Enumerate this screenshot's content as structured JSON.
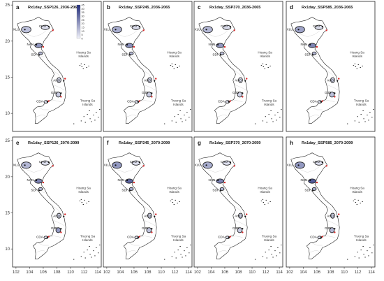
{
  "figure": {
    "x_ticks": [
      "102",
      "104",
      "106",
      "108",
      "110",
      "112",
      "114"
    ],
    "y_ticks": [
      "10",
      "15",
      "20",
      "25"
    ],
    "island_labels": {
      "hoang_sa": [
        "Hoang Sa",
        "Islands"
      ],
      "truong_sa": [
        "Truong Sa",
        "Islands"
      ]
    },
    "stations": [
      "XLU",
      "CHU",
      "NAN",
      "SDI",
      "AHO",
      "G3D",
      "CDA"
    ],
    "legend": {
      "ticks": [
        "45",
        "40",
        "35",
        "30",
        "25",
        "20",
        "15",
        "10",
        "5",
        "0"
      ],
      "color_high": "#1f2a7a",
      "color_low": "#f2f3fb"
    },
    "colors": {
      "basin_low": "#e6e8f6",
      "basin_mid": "#9aa2d6",
      "basin_high": "#3a45a6",
      "station_marker": "#d62728",
      "outline": "#222222"
    }
  },
  "panels": [
    {
      "letter": "a",
      "title": "Rx1day_SSP126_2036-2065",
      "has_legend": true,
      "intensity": [
        0.25,
        0.1,
        0.45,
        0.3,
        0.15,
        0.2,
        0.1
      ]
    },
    {
      "letter": "b",
      "title": "Rx1day_SSP245_2036-2065",
      "has_legend": false,
      "intensity": [
        0.35,
        0.1,
        0.5,
        0.3,
        0.15,
        0.2,
        0.1
      ]
    },
    {
      "letter": "c",
      "title": "Rx1day_SSP370_2036-2065",
      "has_legend": false,
      "intensity": [
        0.3,
        0.1,
        0.45,
        0.25,
        0.1,
        0.15,
        0.1
      ]
    },
    {
      "letter": "d",
      "title": "Rx1day_SSP585_2036-2065",
      "has_legend": false,
      "intensity": [
        0.4,
        0.1,
        0.55,
        0.3,
        0.15,
        0.25,
        0.1
      ]
    },
    {
      "letter": "e",
      "title": "Rx1day_SSP126_2070-2099",
      "has_legend": false,
      "intensity": [
        0.3,
        0.1,
        0.55,
        0.3,
        0.15,
        0.45,
        0.1
      ]
    },
    {
      "letter": "f",
      "title": "Rx1day_SSP245_2070-2099",
      "has_legend": false,
      "intensity": [
        0.45,
        0.1,
        0.7,
        0.35,
        0.15,
        0.25,
        0.1
      ]
    },
    {
      "letter": "g",
      "title": "Rx1day_SSP370_2070-2099",
      "has_legend": false,
      "intensity": [
        0.35,
        0.1,
        0.55,
        0.3,
        0.15,
        0.2,
        0.1
      ]
    },
    {
      "letter": "h",
      "title": "Rx1day_SSP585_2070-2099",
      "has_legend": false,
      "intensity": [
        0.45,
        0.1,
        0.75,
        0.35,
        0.15,
        0.3,
        0.1
      ]
    }
  ]
}
